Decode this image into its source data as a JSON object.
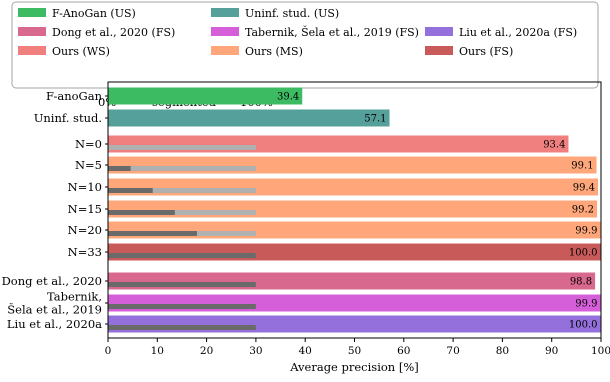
{
  "chart_data": {
    "type": "bar",
    "orientation": "horizontal",
    "xlabel": "Average precision [%]",
    "xlim": [
      0,
      100
    ],
    "xticks": [
      "0",
      "10",
      "20",
      "30",
      "40",
      "50",
      "60",
      "70",
      "80",
      "90",
      "100"
    ],
    "grid": false,
    "legend_placement": "top",
    "segmented_scale": {
      "left_label": "0%",
      "title": "segmented",
      "right_label": "100%"
    },
    "legend": [
      {
        "name": "F-AnoGan (US)",
        "color": "#3dbb63"
      },
      {
        "name": "Uninf. stud. (US)",
        "color": "#55a09a"
      },
      {
        "name": "Liu et al., 2020a (FS)",
        "color": "#9370db"
      },
      {
        "name": "Dong et al., 2020 (FS)",
        "color": "#d9688e"
      },
      {
        "name": "Tabernik, Šela et al., 2019 (FS)",
        "color": "#d45fd8"
      },
      {
        "name": "Ours (FS)",
        "color": "#c95a5a"
      },
      {
        "name": "Ours (WS)",
        "color": "#f08080"
      },
      {
        "name": "Ours (MS)",
        "color": "#ffa77a"
      }
    ],
    "rows": [
      {
        "label": "F-anoGan",
        "value": 39.4,
        "value_label": "39.4",
        "series": 0,
        "segmented": null
      },
      {
        "label": "Uninf. stud.",
        "value": 57.1,
        "value_label": "57.1",
        "series": 1,
        "segmented": null
      },
      {
        "label": "N=0",
        "value": 93.4,
        "value_label": "93.4",
        "series": 6,
        "segmented": 0
      },
      {
        "label": "N=5",
        "value": 99.1,
        "value_label": "99.1",
        "series": 7,
        "segmented": 0.15
      },
      {
        "label": "N=10",
        "value": 99.4,
        "value_label": "99.4",
        "series": 7,
        "segmented": 0.3
      },
      {
        "label": "N=15",
        "value": 99.2,
        "value_label": "99.2",
        "series": 7,
        "segmented": 0.45
      },
      {
        "label": "N=20",
        "value": 99.9,
        "value_label": "99.9",
        "series": 7,
        "segmented": 0.6
      },
      {
        "label": "N=33",
        "value": 100.0,
        "value_label": "100.0",
        "series": 5,
        "segmented": 1.0
      },
      {
        "label": "Dong et al., 2020",
        "value": 98.8,
        "value_label": "98.8",
        "series": 3,
        "segmented": 1.0
      },
      {
        "label": "Tabernik,\nŠela et al., 2019",
        "value": 99.9,
        "value_label": "99.9",
        "series": 4,
        "segmented": 1.0
      },
      {
        "label": "Liu et al., 2020a",
        "value": 100.0,
        "value_label": "100.0",
        "series": 2,
        "segmented": 1.0
      }
    ]
  }
}
